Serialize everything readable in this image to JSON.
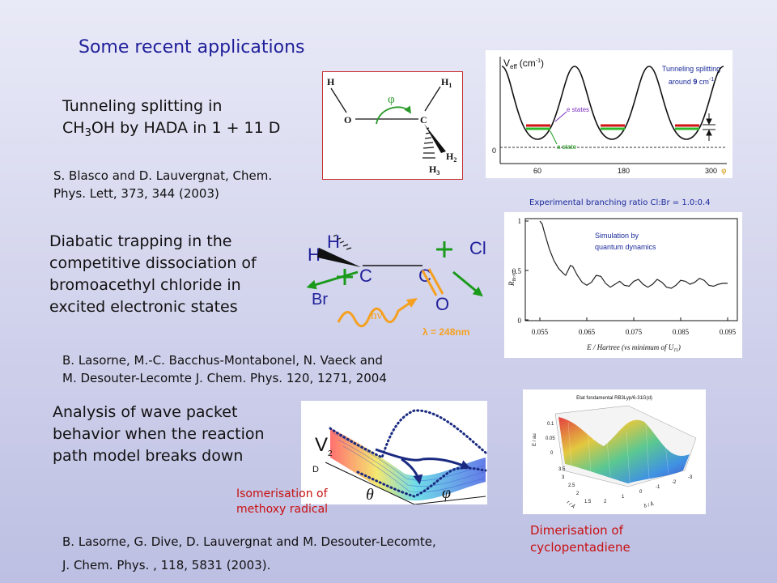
{
  "slide_title": "Some recent applications",
  "section1": {
    "line1": "Tunneling splitting in",
    "line2_pre": "CH",
    "line2_sub": "3",
    "line2_post": "OH by HADA in 1 + 11 D",
    "ref_line1": "S. Blasco and D. Lauvergnat, Chem.",
    "ref_line2": "Phys. Lett, 373, 344 (2003)",
    "molecule": {
      "H_left": "H",
      "O": "O",
      "C": "C",
      "H1": "H",
      "H1_sub": "1",
      "H2": "H",
      "H2_sub": "2",
      "H3": "H",
      "H3_sub": "3",
      "phi": "φ"
    },
    "potential_plot": {
      "ylabel": "V",
      "ylabel_sub": "eff",
      "ylabel_unit": "(cm",
      "ylabel_unit_sup": "-1",
      "ylabel_unit_close": ")",
      "annotation_line1": "Tunneling splitting",
      "annotation_line2_pre": "around ",
      "annotation_line2_bold": "9",
      "annotation_line2_post": " cm",
      "annotation_line2_sup": "-1",
      "e_states": "e states",
      "a_state": "a state",
      "y_tick": "0",
      "x_ticks": [
        "60",
        "180",
        "300"
      ],
      "x_label": "φ"
    }
  },
  "section2": {
    "line1": "Diabatic trapping in the",
    "line2": "competitive dissociation of",
    "line3": "bromoacethyl chloride in",
    "line4": "excited electronic states",
    "ref_line1": "B. Lasorne, M.-C. Bacchus-Montabonel, N. Vaeck and",
    "ref_line2": "M. Desouter-Lecomte  J. Chem. Phys. 120, 1271, 2004",
    "experimental_note": "Experimental branching ratio Cl:Br = 1.0:0.4",
    "molecule": {
      "H1": "H",
      "H2": "H",
      "C1": "C",
      "C2": "C",
      "Cl": "Cl",
      "Br": "Br",
      "O": "O",
      "hnu": "hν",
      "wavelength": "λ = 248nm"
    },
    "ratio_plot": {
      "sim_line1": "Simulation by",
      "sim_line2": "quantum dynamics",
      "y_ticks": [
        "1",
        "0.5",
        "0"
      ],
      "ylabel": "R",
      "ylabel_sub": "Br/Cl",
      "x_ticks": [
        "0.055",
        "0.065",
        "0.075",
        "0.085",
        "0.095"
      ],
      "xlabel_pre": "E / Hartree (vs  minimum of U",
      "xlabel_sub": "11",
      "xlabel_post": ")",
      "curve": [
        [
          0.055,
          1.0
        ],
        [
          0.0555,
          0.97
        ],
        [
          0.056,
          0.88
        ],
        [
          0.057,
          0.72
        ],
        [
          0.058,
          0.6
        ],
        [
          0.059,
          0.52
        ],
        [
          0.06,
          0.47
        ],
        [
          0.0605,
          0.45
        ],
        [
          0.061,
          0.5
        ],
        [
          0.0615,
          0.55
        ],
        [
          0.062,
          0.54
        ],
        [
          0.063,
          0.45
        ],
        [
          0.064,
          0.38
        ],
        [
          0.065,
          0.35
        ],
        [
          0.066,
          0.38
        ],
        [
          0.067,
          0.45
        ],
        [
          0.068,
          0.44
        ],
        [
          0.069,
          0.37
        ],
        [
          0.07,
          0.33
        ],
        [
          0.071,
          0.36
        ],
        [
          0.072,
          0.39
        ],
        [
          0.073,
          0.35
        ],
        [
          0.074,
          0.34
        ],
        [
          0.075,
          0.39
        ],
        [
          0.076,
          0.41
        ],
        [
          0.077,
          0.36
        ],
        [
          0.078,
          0.33
        ],
        [
          0.079,
          0.36
        ],
        [
          0.08,
          0.41
        ],
        [
          0.081,
          0.38
        ],
        [
          0.082,
          0.33
        ],
        [
          0.083,
          0.32
        ],
        [
          0.084,
          0.35
        ],
        [
          0.085,
          0.4
        ],
        [
          0.086,
          0.39
        ],
        [
          0.087,
          0.36
        ],
        [
          0.088,
          0.38
        ],
        [
          0.089,
          0.42
        ],
        [
          0.09,
          0.4
        ],
        [
          0.091,
          0.35
        ],
        [
          0.092,
          0.34
        ],
        [
          0.093,
          0.36
        ],
        [
          0.094,
          0.37
        ],
        [
          0.095,
          0.37
        ]
      ]
    }
  },
  "section3": {
    "line1": "Analysis of wave packet",
    "line2": "behavior when the reaction",
    "line3": "path model breaks down",
    "surface_label_v": "V",
    "surface_label_sub": "2",
    "surface_label_d": "D",
    "theta": "θ",
    "phi": "φ",
    "isomerisation_line1": "Isomerisation of",
    "isomerisation_line2": "methoxy radical",
    "ref_line1": "B. Lasorne, G. Dive, D. Lauvergnat and M. Desouter-Lecomte,",
    "ref_line2": "J. Chem. Phys. , 118, 5831 (2003)."
  },
  "section4": {
    "plot_title": "Etat fondamental RB3Lyp/6-31G(d)",
    "dimer_line1": "Dimerisation of",
    "dimer_line2": "cyclopentadiene",
    "z_ticks": [
      "0.1",
      "0.05",
      "0"
    ],
    "zlabel": "E / au",
    "r_ticks": [
      "3.5",
      "3",
      "2.5",
      "2",
      "1.5"
    ],
    "r_label": "r / Å",
    "d_ticks": [
      "2",
      "1",
      "0",
      "-1",
      "-2",
      "-3"
    ],
    "d_label": "δ / Å"
  },
  "colors": {
    "title": "#20209a",
    "green": "#1a9a1a",
    "orange": "#f5a020",
    "red": "#c81010",
    "navy": "#1a2a80"
  }
}
